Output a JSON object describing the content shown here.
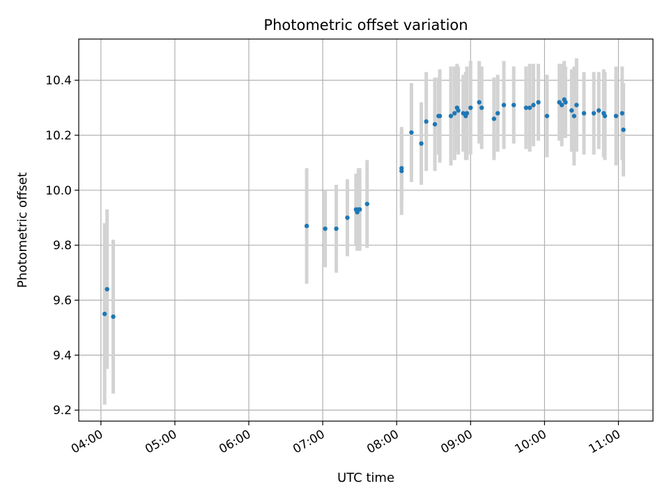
{
  "chart_data": {
    "type": "scatter",
    "title": "Photometric offset variation",
    "xlabel": "UTC time",
    "ylabel": "Photometric offset",
    "grid": true,
    "x_axis_type": "time",
    "xlim": [
      "03:42",
      "11:28"
    ],
    "ylim": [
      9.16,
      10.55
    ],
    "x_ticks": [
      "04:00",
      "05:00",
      "06:00",
      "07:00",
      "08:00",
      "09:00",
      "10:00",
      "11:00"
    ],
    "y_ticks": [
      9.2,
      9.4,
      9.6,
      9.8,
      10.0,
      10.2,
      10.4
    ],
    "y_tick_labels": [
      "9.2",
      "9.4",
      "9.6",
      "9.8",
      "10.0",
      "10.2",
      "10.4"
    ],
    "colors": {
      "point": "#1f77b4",
      "errorbar": "#d3d3d3",
      "grid": "#b0b0b0"
    },
    "series": [
      {
        "x": [
          "04:03",
          "04:05",
          "04:10",
          "06:47",
          "07:02",
          "07:11",
          "07:20",
          "07:27",
          "07:28",
          "07:29",
          "07:30",
          "07:36",
          "08:04",
          "08:04",
          "08:12",
          "08:20",
          "08:24",
          "08:31",
          "08:34",
          "08:35",
          "08:44",
          "08:47",
          "08:49",
          "08:50",
          "08:54",
          "08:56",
          "08:57",
          "09:00",
          "09:07",
          "09:09",
          "09:19",
          "09:22",
          "09:27",
          "09:35",
          "09:45",
          "09:48",
          "09:51",
          "09:55",
          "10:02",
          "10:12",
          "10:14",
          "10:16",
          "10:17",
          "10:22",
          "10:24",
          "10:26",
          "10:32",
          "10:40",
          "10:44",
          "10:48",
          "10:49",
          "10:58",
          "11:03",
          "11:04"
        ],
        "y": [
          9.55,
          9.64,
          9.54,
          9.87,
          9.86,
          9.86,
          9.9,
          9.93,
          9.92,
          9.93,
          9.93,
          9.95,
          10.07,
          10.08,
          10.21,
          10.17,
          10.25,
          10.24,
          10.27,
          10.27,
          10.27,
          10.28,
          10.3,
          10.29,
          10.28,
          10.27,
          10.28,
          10.3,
          10.32,
          10.3,
          10.26,
          10.28,
          10.31,
          10.31,
          10.3,
          10.3,
          10.31,
          10.32,
          10.27,
          10.32,
          10.31,
          10.33,
          10.32,
          10.29,
          10.27,
          10.31,
          10.28,
          10.28,
          10.29,
          10.28,
          10.27,
          10.27,
          10.28,
          10.22
        ],
        "err": [
          0.33,
          0.29,
          0.28,
          0.21,
          0.14,
          0.16,
          0.14,
          0.13,
          0.14,
          0.15,
          0.15,
          0.16,
          0.16,
          0.14,
          0.18,
          0.15,
          0.18,
          0.17,
          0.14,
          0.17,
          0.18,
          0.17,
          0.16,
          0.16,
          0.14,
          0.16,
          0.17,
          0.17,
          0.15,
          0.15,
          0.15,
          0.14,
          0.16,
          0.14,
          0.15,
          0.16,
          0.15,
          0.14,
          0.15,
          0.14,
          0.15,
          0.14,
          0.13,
          0.15,
          0.18,
          0.17,
          0.15,
          0.15,
          0.14,
          0.16,
          0.16,
          0.18,
          0.17,
          0.17
        ]
      }
    ]
  }
}
